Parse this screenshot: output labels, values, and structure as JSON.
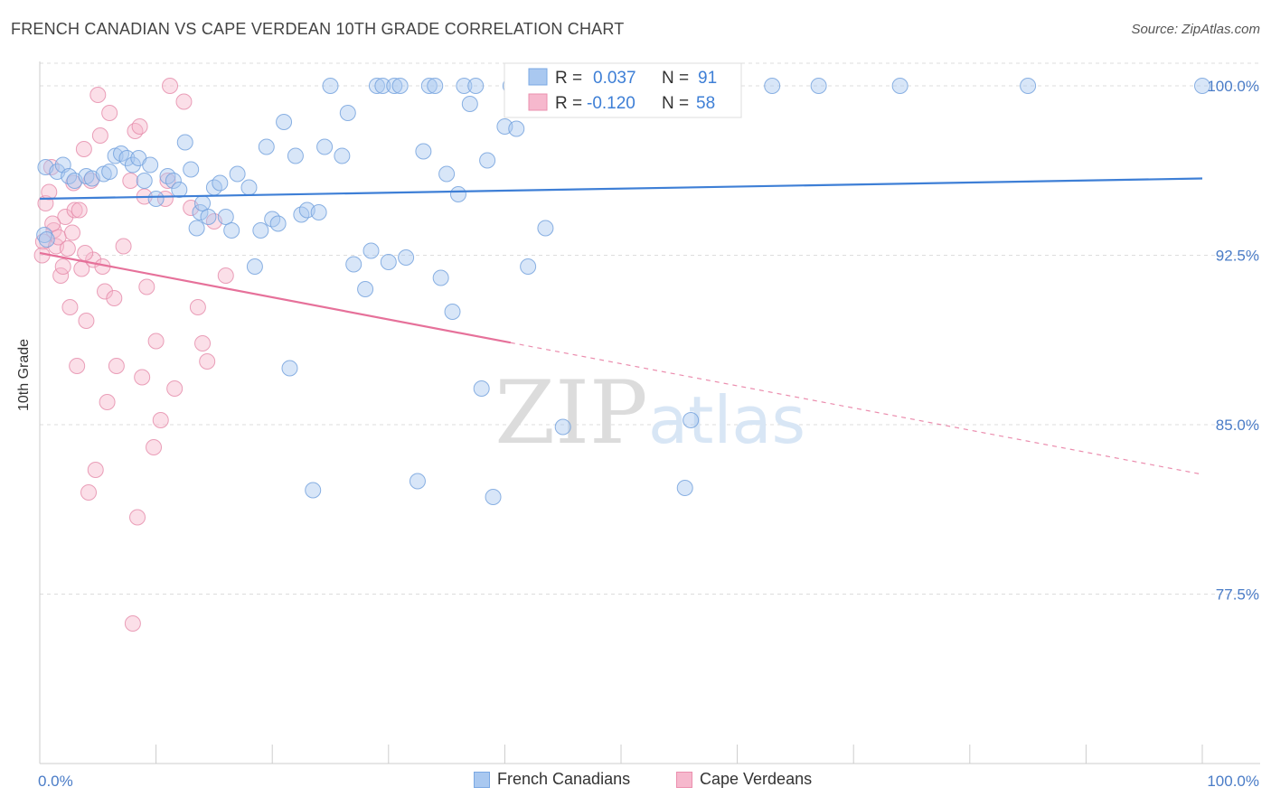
{
  "header": {
    "title": "FRENCH CANADIAN VS CAPE VERDEAN 10TH GRADE CORRELATION CHART",
    "source": "Source: ZipAtlas.com"
  },
  "watermark": {
    "zip": "ZIP",
    "atlas": "atlas"
  },
  "colors": {
    "blue": "#3e7fd6",
    "blue_fill": "#a9c8f0",
    "pink": "#e6719a",
    "pink_fill": "#f6b8cd",
    "axis_text": "#4a7cc7",
    "grid": "#dddddd"
  },
  "chart_data": {
    "type": "scatter",
    "title": "FRENCH CANADIAN VS CAPE VERDEAN 10TH GRADE CORRELATION CHART",
    "xlabel": "",
    "ylabel": "10th Grade",
    "xlim": [
      0,
      100
    ],
    "ylim": [
      70.0,
      101.0
    ],
    "x_tick_labels": [
      "0.0%",
      "100.0%"
    ],
    "y_ticks": [
      100.0,
      92.5,
      85.0,
      77.5
    ],
    "y_tick_labels": [
      "100.0%",
      "92.5%",
      "85.0%",
      "77.5%"
    ],
    "grid": true,
    "legend_position": "top-center",
    "legend": [
      {
        "r_label": "R =",
        "r_value": "0.037",
        "n_label": "N =",
        "n_value": "91"
      },
      {
        "r_label": "R =",
        "r_value": "-0.120",
        "n_label": "N =",
        "n_value": "58"
      }
    ],
    "bottom_legend": [
      "French Canadians",
      "Cape Verdeans"
    ],
    "series": [
      {
        "name": "French Canadians",
        "color": "#3e7fd6",
        "trend": {
          "x0": 0,
          "y0": 95.0,
          "x1": 100,
          "y1": 95.9,
          "solid_until": 100
        },
        "points": [
          [
            0.5,
            96.4
          ],
          [
            1.5,
            96.2
          ],
          [
            2.0,
            96.5
          ],
          [
            2.5,
            96.0
          ],
          [
            3.0,
            95.8
          ],
          [
            4.0,
            96.0
          ],
          [
            4.5,
            95.9
          ],
          [
            5.5,
            96.1
          ],
          [
            6.0,
            96.2
          ],
          [
            6.5,
            96.9
          ],
          [
            7.0,
            97.0
          ],
          [
            7.5,
            96.8
          ],
          [
            8.0,
            96.5
          ],
          [
            8.5,
            96.8
          ],
          [
            9.0,
            95.8
          ],
          [
            9.5,
            96.5
          ],
          [
            10.0,
            95.0
          ],
          [
            11.0,
            96.0
          ],
          [
            11.5,
            95.8
          ],
          [
            12.0,
            95.4
          ],
          [
            12.5,
            97.5
          ],
          [
            13.0,
            96.3
          ],
          [
            13.5,
            93.7
          ],
          [
            13.8,
            94.4
          ],
          [
            14.0,
            94.8
          ],
          [
            14.5,
            94.2
          ],
          [
            15.0,
            95.5
          ],
          [
            15.5,
            95.7
          ],
          [
            16.0,
            94.2
          ],
          [
            16.5,
            93.6
          ],
          [
            17.0,
            96.1
          ],
          [
            18.0,
            95.5
          ],
          [
            18.5,
            92.0
          ],
          [
            19.0,
            93.6
          ],
          [
            19.5,
            97.3
          ],
          [
            20.0,
            94.1
          ],
          [
            20.5,
            93.9
          ],
          [
            21.0,
            98.4
          ],
          [
            21.5,
            87.5
          ],
          [
            22.0,
            96.9
          ],
          [
            22.5,
            94.3
          ],
          [
            23.0,
            94.5
          ],
          [
            23.5,
            82.1
          ],
          [
            24.0,
            94.4
          ],
          [
            24.5,
            97.3
          ],
          [
            25.0,
            100.0
          ],
          [
            26.0,
            96.9
          ],
          [
            26.5,
            98.8
          ],
          [
            27.0,
            92.1
          ],
          [
            28.0,
            91.0
          ],
          [
            28.5,
            92.7
          ],
          [
            29.0,
            100.0
          ],
          [
            29.5,
            100.0
          ],
          [
            30.0,
            92.2
          ],
          [
            30.5,
            100.0
          ],
          [
            31.0,
            100.0
          ],
          [
            31.5,
            92.4
          ],
          [
            32.5,
            82.5
          ],
          [
            33.0,
            97.1
          ],
          [
            33.5,
            100.0
          ],
          [
            34.0,
            100.0
          ],
          [
            34.5,
            91.5
          ],
          [
            35.0,
            96.1
          ],
          [
            35.5,
            90.0
          ],
          [
            36.0,
            95.2
          ],
          [
            36.5,
            100.0
          ],
          [
            37.0,
            99.2
          ],
          [
            37.5,
            100.0
          ],
          [
            38.0,
            86.6
          ],
          [
            38.5,
            96.7
          ],
          [
            39.0,
            81.8
          ],
          [
            40.0,
            98.2
          ],
          [
            40.5,
            100.0
          ],
          [
            41.0,
            98.1
          ],
          [
            42.0,
            92.0
          ],
          [
            43.0,
            100.0
          ],
          [
            43.5,
            93.7
          ],
          [
            45.0,
            84.9
          ],
          [
            46.0,
            100.0
          ],
          [
            48.0,
            100.0
          ],
          [
            51.0,
            100.0
          ],
          [
            55.5,
            82.2
          ],
          [
            56.0,
            85.2
          ],
          [
            59.5,
            100.0
          ],
          [
            63.0,
            100.0
          ],
          [
            67.0,
            100.0
          ],
          [
            74.0,
            100.0
          ],
          [
            85.0,
            100.0
          ],
          [
            100.0,
            100.0
          ],
          [
            0.4,
            93.4
          ],
          [
            0.6,
            93.2
          ]
        ]
      },
      {
        "name": "Cape Verdeans",
        "color": "#e6719a",
        "trend": {
          "x0": 0,
          "y0": 92.6,
          "x1": 100,
          "y1": 82.8,
          "solid_until": 40.5
        },
        "points": [
          [
            0.3,
            93.1
          ],
          [
            0.5,
            94.8
          ],
          [
            0.8,
            95.3
          ],
          [
            1.0,
            96.4
          ],
          [
            1.2,
            93.6
          ],
          [
            1.4,
            92.9
          ],
          [
            1.6,
            93.3
          ],
          [
            1.8,
            91.6
          ],
          [
            2.0,
            92.0
          ],
          [
            2.2,
            94.2
          ],
          [
            2.4,
            92.8
          ],
          [
            2.6,
            90.2
          ],
          [
            2.8,
            93.5
          ],
          [
            3.0,
            94.5
          ],
          [
            3.2,
            87.6
          ],
          [
            3.4,
            94.5
          ],
          [
            3.6,
            91.9
          ],
          [
            3.8,
            97.2
          ],
          [
            4.0,
            89.6
          ],
          [
            4.2,
            82.0
          ],
          [
            4.4,
            95.8
          ],
          [
            4.6,
            92.3
          ],
          [
            4.8,
            83.0
          ],
          [
            5.0,
            99.6
          ],
          [
            5.2,
            97.8
          ],
          [
            5.4,
            92.0
          ],
          [
            5.6,
            90.9
          ],
          [
            5.8,
            86.0
          ],
          [
            6.0,
            98.8
          ],
          [
            6.4,
            90.6
          ],
          [
            6.6,
            87.6
          ],
          [
            7.2,
            92.9
          ],
          [
            7.8,
            95.8
          ],
          [
            8.0,
            76.2
          ],
          [
            8.2,
            98.0
          ],
          [
            8.4,
            80.9
          ],
          [
            8.6,
            98.2
          ],
          [
            8.8,
            87.1
          ],
          [
            9.0,
            95.1
          ],
          [
            9.2,
            91.1
          ],
          [
            9.8,
            84.0
          ],
          [
            10.0,
            88.7
          ],
          [
            10.4,
            85.2
          ],
          [
            10.8,
            95.0
          ],
          [
            11.0,
            95.8
          ],
          [
            11.2,
            100.0
          ],
          [
            11.6,
            86.6
          ],
          [
            12.4,
            99.3
          ],
          [
            13.0,
            94.6
          ],
          [
            13.6,
            90.2
          ],
          [
            14.0,
            88.6
          ],
          [
            14.4,
            87.8
          ],
          [
            15.0,
            94.0
          ],
          [
            16.0,
            91.6
          ],
          [
            2.9,
            95.7
          ],
          [
            0.2,
            92.5
          ],
          [
            1.1,
            93.9
          ],
          [
            3.9,
            92.6
          ]
        ]
      }
    ]
  }
}
